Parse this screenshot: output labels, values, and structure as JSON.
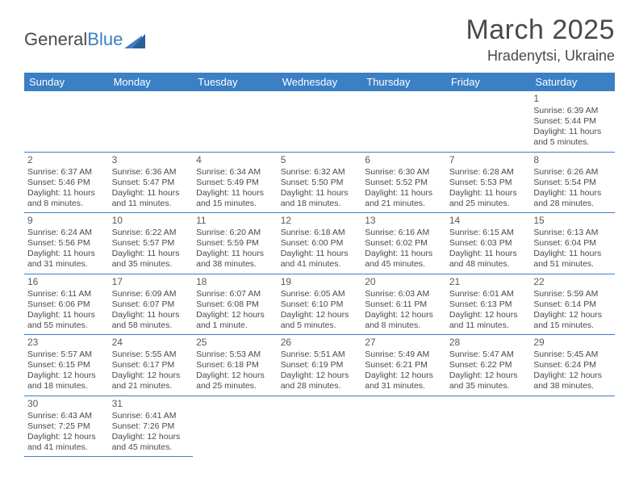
{
  "brand": {
    "part1": "General",
    "part2": "Blue"
  },
  "title": {
    "month": "March 2025",
    "location": "Hradenytsi, Ukraine"
  },
  "colors": {
    "header_bg": "#3b7fc4",
    "header_text": "#ffffff",
    "border": "#3b7fc4",
    "body_text": "#4a4a4a",
    "grey_row": "#f2f2f2",
    "page_bg": "#ffffff"
  },
  "fonts": {
    "title_size_pt": 26,
    "location_size_pt": 14,
    "header_size_pt": 10,
    "cell_size_pt": 8
  },
  "weekdays": [
    "Sunday",
    "Monday",
    "Tuesday",
    "Wednesday",
    "Thursday",
    "Friday",
    "Saturday"
  ],
  "grid": [
    [
      null,
      null,
      null,
      null,
      null,
      null,
      {
        "n": "1",
        "sr": "Sunrise: 6:39 AM",
        "ss": "Sunset: 5:44 PM",
        "dl": "Daylight: 11 hours and 5 minutes."
      }
    ],
    [
      {
        "n": "2",
        "sr": "Sunrise: 6:37 AM",
        "ss": "Sunset: 5:46 PM",
        "dl": "Daylight: 11 hours and 8 minutes."
      },
      {
        "n": "3",
        "sr": "Sunrise: 6:36 AM",
        "ss": "Sunset: 5:47 PM",
        "dl": "Daylight: 11 hours and 11 minutes."
      },
      {
        "n": "4",
        "sr": "Sunrise: 6:34 AM",
        "ss": "Sunset: 5:49 PM",
        "dl": "Daylight: 11 hours and 15 minutes."
      },
      {
        "n": "5",
        "sr": "Sunrise: 6:32 AM",
        "ss": "Sunset: 5:50 PM",
        "dl": "Daylight: 11 hours and 18 minutes."
      },
      {
        "n": "6",
        "sr": "Sunrise: 6:30 AM",
        "ss": "Sunset: 5:52 PM",
        "dl": "Daylight: 11 hours and 21 minutes."
      },
      {
        "n": "7",
        "sr": "Sunrise: 6:28 AM",
        "ss": "Sunset: 5:53 PM",
        "dl": "Daylight: 11 hours and 25 minutes."
      },
      {
        "n": "8",
        "sr": "Sunrise: 6:26 AM",
        "ss": "Sunset: 5:54 PM",
        "dl": "Daylight: 11 hours and 28 minutes."
      }
    ],
    [
      {
        "n": "9",
        "sr": "Sunrise: 6:24 AM",
        "ss": "Sunset: 5:56 PM",
        "dl": "Daylight: 11 hours and 31 minutes."
      },
      {
        "n": "10",
        "sr": "Sunrise: 6:22 AM",
        "ss": "Sunset: 5:57 PM",
        "dl": "Daylight: 11 hours and 35 minutes."
      },
      {
        "n": "11",
        "sr": "Sunrise: 6:20 AM",
        "ss": "Sunset: 5:59 PM",
        "dl": "Daylight: 11 hours and 38 minutes."
      },
      {
        "n": "12",
        "sr": "Sunrise: 6:18 AM",
        "ss": "Sunset: 6:00 PM",
        "dl": "Daylight: 11 hours and 41 minutes."
      },
      {
        "n": "13",
        "sr": "Sunrise: 6:16 AM",
        "ss": "Sunset: 6:02 PM",
        "dl": "Daylight: 11 hours and 45 minutes."
      },
      {
        "n": "14",
        "sr": "Sunrise: 6:15 AM",
        "ss": "Sunset: 6:03 PM",
        "dl": "Daylight: 11 hours and 48 minutes."
      },
      {
        "n": "15",
        "sr": "Sunrise: 6:13 AM",
        "ss": "Sunset: 6:04 PM",
        "dl": "Daylight: 11 hours and 51 minutes."
      }
    ],
    [
      {
        "n": "16",
        "sr": "Sunrise: 6:11 AM",
        "ss": "Sunset: 6:06 PM",
        "dl": "Daylight: 11 hours and 55 minutes."
      },
      {
        "n": "17",
        "sr": "Sunrise: 6:09 AM",
        "ss": "Sunset: 6:07 PM",
        "dl": "Daylight: 11 hours and 58 minutes."
      },
      {
        "n": "18",
        "sr": "Sunrise: 6:07 AM",
        "ss": "Sunset: 6:08 PM",
        "dl": "Daylight: 12 hours and 1 minute."
      },
      {
        "n": "19",
        "sr": "Sunrise: 6:05 AM",
        "ss": "Sunset: 6:10 PM",
        "dl": "Daylight: 12 hours and 5 minutes."
      },
      {
        "n": "20",
        "sr": "Sunrise: 6:03 AM",
        "ss": "Sunset: 6:11 PM",
        "dl": "Daylight: 12 hours and 8 minutes."
      },
      {
        "n": "21",
        "sr": "Sunrise: 6:01 AM",
        "ss": "Sunset: 6:13 PM",
        "dl": "Daylight: 12 hours and 11 minutes."
      },
      {
        "n": "22",
        "sr": "Sunrise: 5:59 AM",
        "ss": "Sunset: 6:14 PM",
        "dl": "Daylight: 12 hours and 15 minutes."
      }
    ],
    [
      {
        "n": "23",
        "sr": "Sunrise: 5:57 AM",
        "ss": "Sunset: 6:15 PM",
        "dl": "Daylight: 12 hours and 18 minutes."
      },
      {
        "n": "24",
        "sr": "Sunrise: 5:55 AM",
        "ss": "Sunset: 6:17 PM",
        "dl": "Daylight: 12 hours and 21 minutes."
      },
      {
        "n": "25",
        "sr": "Sunrise: 5:53 AM",
        "ss": "Sunset: 6:18 PM",
        "dl": "Daylight: 12 hours and 25 minutes."
      },
      {
        "n": "26",
        "sr": "Sunrise: 5:51 AM",
        "ss": "Sunset: 6:19 PM",
        "dl": "Daylight: 12 hours and 28 minutes."
      },
      {
        "n": "27",
        "sr": "Sunrise: 5:49 AM",
        "ss": "Sunset: 6:21 PM",
        "dl": "Daylight: 12 hours and 31 minutes."
      },
      {
        "n": "28",
        "sr": "Sunrise: 5:47 AM",
        "ss": "Sunset: 6:22 PM",
        "dl": "Daylight: 12 hours and 35 minutes."
      },
      {
        "n": "29",
        "sr": "Sunrise: 5:45 AM",
        "ss": "Sunset: 6:24 PM",
        "dl": "Daylight: 12 hours and 38 minutes."
      }
    ],
    [
      {
        "n": "30",
        "sr": "Sunrise: 6:43 AM",
        "ss": "Sunset: 7:25 PM",
        "dl": "Daylight: 12 hours and 41 minutes."
      },
      {
        "n": "31",
        "sr": "Sunrise: 6:41 AM",
        "ss": "Sunset: 7:26 PM",
        "dl": "Daylight: 12 hours and 45 minutes."
      },
      null,
      null,
      null,
      null,
      null
    ]
  ]
}
